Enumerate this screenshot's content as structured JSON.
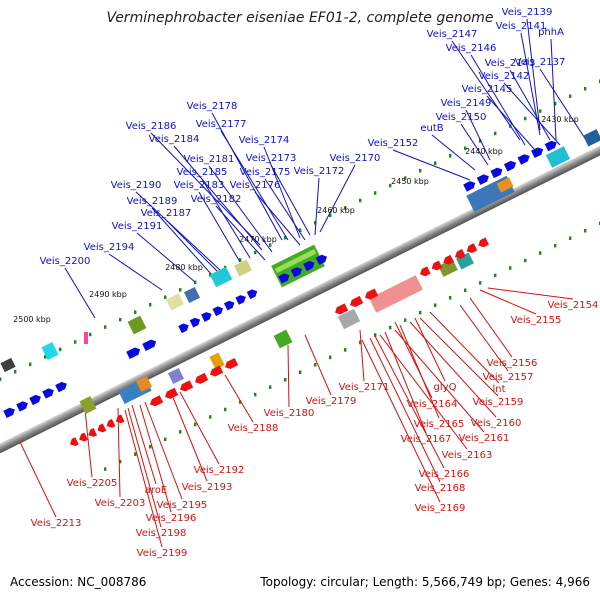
{
  "title": "Verminephrobacter eiseniae EF01-2, complete genome",
  "footer": {
    "accession": "Accession: NC_008786",
    "summary": "Topology: circular; Length: 5,566,749 bp; Genes: 4,966"
  },
  "kbp_ticks": [
    "2430 kbp",
    "2440 kbp",
    "2450 kbp",
    "2460 kbp",
    "2470 kbp",
    "2480 kbp",
    "2490 kbp",
    "2500 kbp"
  ],
  "top_labels": [
    "Veis_2139",
    "Veis_2141",
    "phhA",
    "Veis_2147",
    "Veis_2146",
    "Veis_2143",
    "Veis_2137",
    "Veis_2142",
    "Veis_2145",
    "Veis_2149",
    "Veis_2150",
    "eutB",
    "Veis_2178",
    "Veis_2177",
    "Veis_2186",
    "Veis_2184",
    "Veis_2174",
    "Veis_2181",
    "Veis_2173",
    "Veis_2152",
    "Veis_2185",
    "Veis_2175",
    "Veis_2170",
    "Veis_2183",
    "Veis_2190",
    "Veis_2176",
    "Veis_2172",
    "Veis_2189",
    "Veis_2182",
    "Veis_2187",
    "Veis_2191",
    "Veis_2194",
    "Veis_2200"
  ],
  "bottom_labels": [
    "Veis_2154",
    "Veis_2155",
    "Veis_2156",
    "Veis_2157",
    "Veis_2171",
    "glyQ",
    "lnt",
    "Veis_2179",
    "Veis_2159",
    "Veis_2164",
    "Veis_2180",
    "Veis_2165",
    "Veis_2160",
    "Veis_2188",
    "Veis_2167",
    "Veis_2161",
    "Veis_2163",
    "Veis_2166",
    "Veis_2168",
    "Veis_2169",
    "Veis_2192",
    "Veis_2193",
    "Veis_2205",
    "aroE",
    "Veis_2203",
    "Veis_2195",
    "Veis_2196",
    "Veis_2213",
    "Veis_2198",
    "Veis_2199"
  ],
  "colors": {
    "forward_label": "#1010c8",
    "reverse_label": "#d81010",
    "forward_gene": "#0a0ae0",
    "reverse_gene": "#ee1010",
    "backbone": "#808080",
    "tick": "#1a8a1a"
  }
}
